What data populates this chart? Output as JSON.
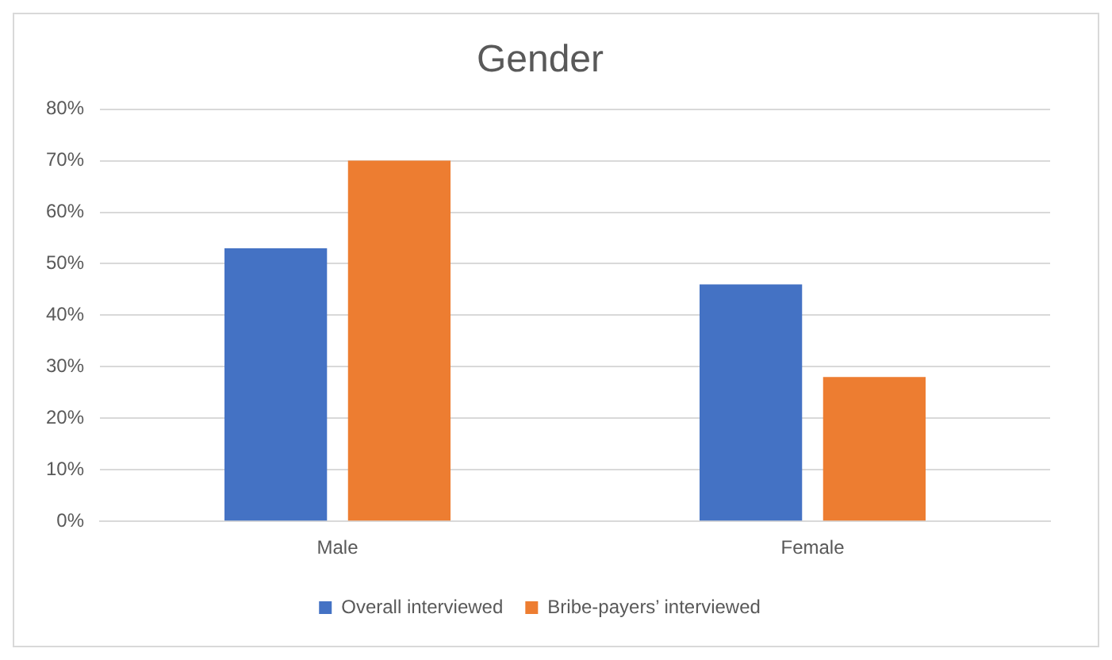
{
  "chart_data": {
    "type": "bar",
    "title": "Gender",
    "categories": [
      "Male",
      "Female"
    ],
    "series": [
      {
        "name": "Overall interviewed",
        "color": "#4472c4",
        "values": [
          53,
          46
        ]
      },
      {
        "name": "Bribe-payers’ interviewed",
        "color": "#ed7d31",
        "values": [
          70,
          28
        ]
      }
    ],
    "ylim": [
      0,
      80
    ],
    "yticks": [
      {
        "value": 0,
        "label": "0%"
      },
      {
        "value": 10,
        "label": "10%"
      },
      {
        "value": 20,
        "label": "20%"
      },
      {
        "value": 30,
        "label": "30%"
      },
      {
        "value": 40,
        "label": "40%"
      },
      {
        "value": 50,
        "label": "50%"
      },
      {
        "value": 60,
        "label": "60%"
      },
      {
        "value": 70,
        "label": "70%"
      },
      {
        "value": 80,
        "label": "80%"
      }
    ],
    "grid": "y",
    "legend": "bottom"
  }
}
